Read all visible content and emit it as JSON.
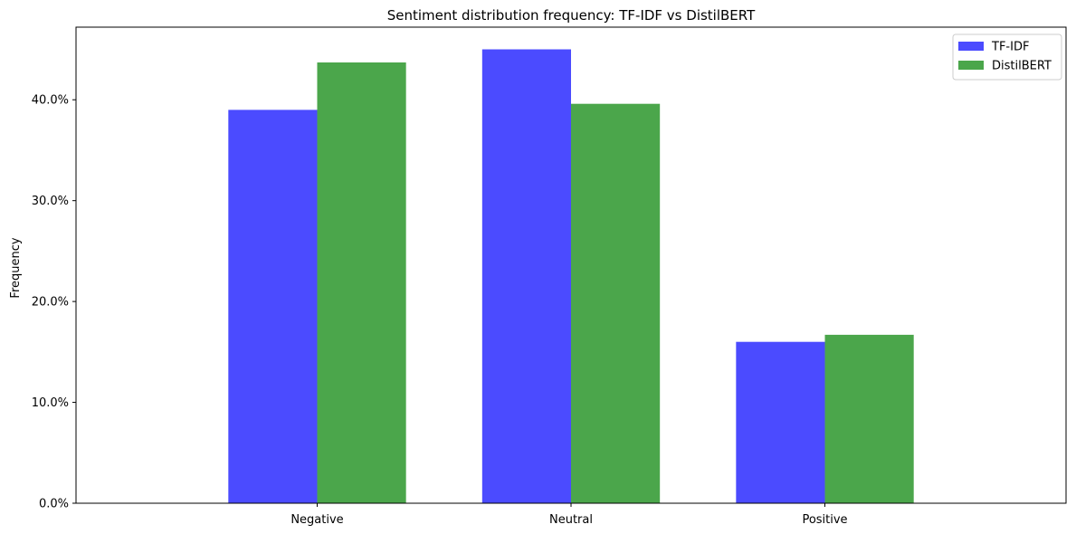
{
  "chart_data": {
    "type": "bar",
    "title": "Sentiment distribution frequency: TF-IDF vs DistilBERT",
    "xlabel": "",
    "ylabel": "Frequency",
    "categories": [
      "Negative",
      "Neutral",
      "Positive"
    ],
    "series": [
      {
        "name": "TF-IDF",
        "values": [
          39.0,
          45.0,
          16.0
        ],
        "color": "#4b4bff"
      },
      {
        "name": "DistilBERT",
        "values": [
          43.7,
          39.6,
          16.7
        ],
        "color": "#4ba64b"
      }
    ],
    "ylim": [
      0,
      47.2
    ],
    "yticks": [
      0,
      10,
      20,
      30,
      40
    ],
    "ytick_labels": [
      "0.0%",
      "10.0%",
      "20.0%",
      "30.0%",
      "40.0%"
    ],
    "grid": false,
    "legend_position": "top-right"
  }
}
